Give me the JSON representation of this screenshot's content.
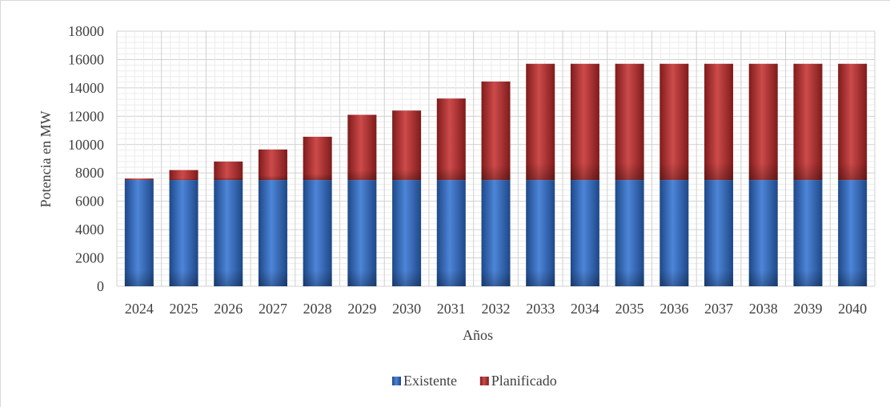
{
  "chart_data": {
    "type": "bar",
    "stacked": true,
    "categories": [
      "2024",
      "2025",
      "2026",
      "2027",
      "2028",
      "2029",
      "2030",
      "2031",
      "2032",
      "2033",
      "2034",
      "2035",
      "2036",
      "2037",
      "2038",
      "2039",
      "2040"
    ],
    "series": [
      {
        "name": "Existente",
        "color": "#2e6fd1",
        "values": [
          7500,
          7500,
          7500,
          7500,
          7500,
          7500,
          7500,
          7500,
          7500,
          7500,
          7500,
          7500,
          7500,
          7500,
          7500,
          7500,
          7500
        ]
      },
      {
        "name": "Planificado",
        "color": "#c42a2a",
        "values": [
          100,
          700,
          1300,
          2150,
          3050,
          4600,
          4900,
          5750,
          6950,
          8200,
          8200,
          8200,
          8200,
          8200,
          8200,
          8200,
          8200
        ]
      }
    ],
    "xlabel": "Años",
    "ylabel": "Potencia en MW",
    "ylim": [
      0,
      18000
    ],
    "yticks": [
      0,
      2000,
      4000,
      6000,
      8000,
      10000,
      12000,
      14000,
      16000,
      18000
    ],
    "grid": true,
    "legend_position": "bottom"
  }
}
